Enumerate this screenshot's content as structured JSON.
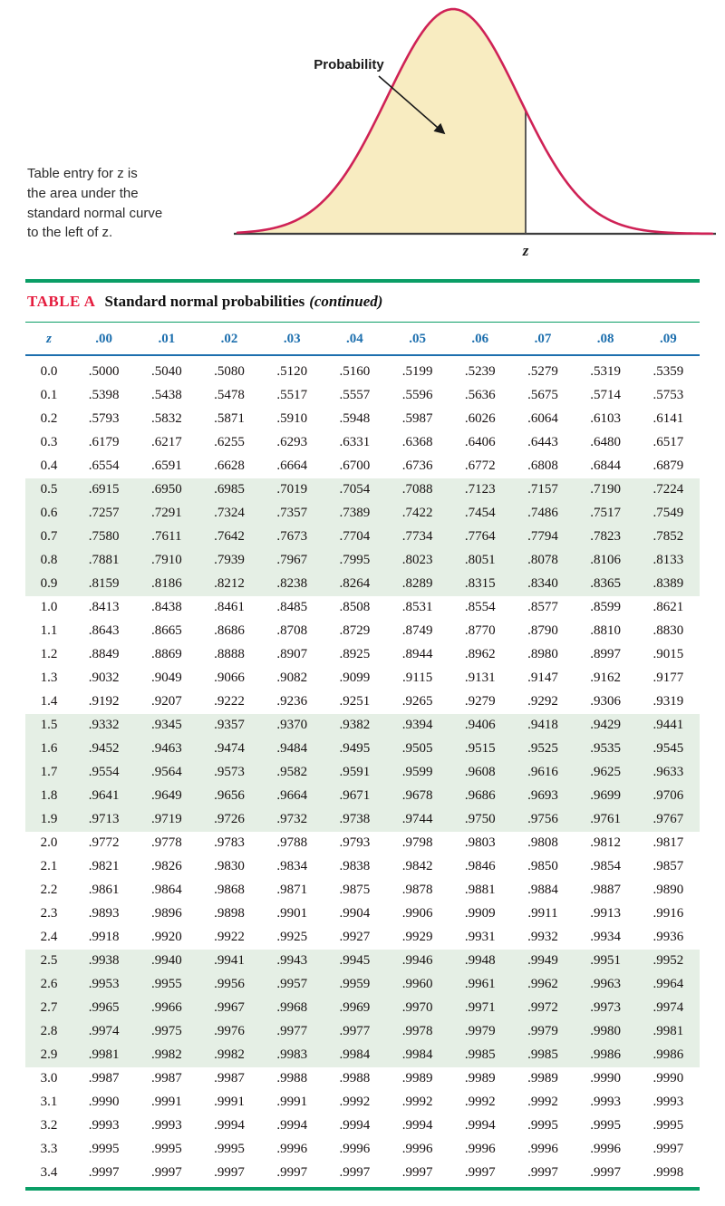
{
  "figure": {
    "probability_label": "Probability",
    "z_label": "z",
    "caption": "Table entry for z is\nthe area under the\nstandard normal curve\nto the left of z."
  },
  "table": {
    "title_prefix": "TABLE A",
    "title_main": "Standard normal probabilities",
    "title_continued": "(continued)",
    "columns": [
      "z",
      ".00",
      ".01",
      ".02",
      ".03",
      ".04",
      ".05",
      ".06",
      ".07",
      ".08",
      ".09"
    ],
    "rows": [
      [
        "0.0",
        ".5000",
        ".5040",
        ".5080",
        ".5120",
        ".5160",
        ".5199",
        ".5239",
        ".5279",
        ".5319",
        ".5359"
      ],
      [
        "0.1",
        ".5398",
        ".5438",
        ".5478",
        ".5517",
        ".5557",
        ".5596",
        ".5636",
        ".5675",
        ".5714",
        ".5753"
      ],
      [
        "0.2",
        ".5793",
        ".5832",
        ".5871",
        ".5910",
        ".5948",
        ".5987",
        ".6026",
        ".6064",
        ".6103",
        ".6141"
      ],
      [
        "0.3",
        ".6179",
        ".6217",
        ".6255",
        ".6293",
        ".6331",
        ".6368",
        ".6406",
        ".6443",
        ".6480",
        ".6517"
      ],
      [
        "0.4",
        ".6554",
        ".6591",
        ".6628",
        ".6664",
        ".6700",
        ".6736",
        ".6772",
        ".6808",
        ".6844",
        ".6879"
      ],
      [
        "0.5",
        ".6915",
        ".6950",
        ".6985",
        ".7019",
        ".7054",
        ".7088",
        ".7123",
        ".7157",
        ".7190",
        ".7224"
      ],
      [
        "0.6",
        ".7257",
        ".7291",
        ".7324",
        ".7357",
        ".7389",
        ".7422",
        ".7454",
        ".7486",
        ".7517",
        ".7549"
      ],
      [
        "0.7",
        ".7580",
        ".7611",
        ".7642",
        ".7673",
        ".7704",
        ".7734",
        ".7764",
        ".7794",
        ".7823",
        ".7852"
      ],
      [
        "0.8",
        ".7881",
        ".7910",
        ".7939",
        ".7967",
        ".7995",
        ".8023",
        ".8051",
        ".8078",
        ".8106",
        ".8133"
      ],
      [
        "0.9",
        ".8159",
        ".8186",
        ".8212",
        ".8238",
        ".8264",
        ".8289",
        ".8315",
        ".8340",
        ".8365",
        ".8389"
      ],
      [
        "1.0",
        ".8413",
        ".8438",
        ".8461",
        ".8485",
        ".8508",
        ".8531",
        ".8554",
        ".8577",
        ".8599",
        ".8621"
      ],
      [
        "1.1",
        ".8643",
        ".8665",
        ".8686",
        ".8708",
        ".8729",
        ".8749",
        ".8770",
        ".8790",
        ".8810",
        ".8830"
      ],
      [
        "1.2",
        ".8849",
        ".8869",
        ".8888",
        ".8907",
        ".8925",
        ".8944",
        ".8962",
        ".8980",
        ".8997",
        ".9015"
      ],
      [
        "1.3",
        ".9032",
        ".9049",
        ".9066",
        ".9082",
        ".9099",
        ".9115",
        ".9131",
        ".9147",
        ".9162",
        ".9177"
      ],
      [
        "1.4",
        ".9192",
        ".9207",
        ".9222",
        ".9236",
        ".9251",
        ".9265",
        ".9279",
        ".9292",
        ".9306",
        ".9319"
      ],
      [
        "1.5",
        ".9332",
        ".9345",
        ".9357",
        ".9370",
        ".9382",
        ".9394",
        ".9406",
        ".9418",
        ".9429",
        ".9441"
      ],
      [
        "1.6",
        ".9452",
        ".9463",
        ".9474",
        ".9484",
        ".9495",
        ".9505",
        ".9515",
        ".9525",
        ".9535",
        ".9545"
      ],
      [
        "1.7",
        ".9554",
        ".9564",
        ".9573",
        ".9582",
        ".9591",
        ".9599",
        ".9608",
        ".9616",
        ".9625",
        ".9633"
      ],
      [
        "1.8",
        ".9641",
        ".9649",
        ".9656",
        ".9664",
        ".9671",
        ".9678",
        ".9686",
        ".9693",
        ".9699",
        ".9706"
      ],
      [
        "1.9",
        ".9713",
        ".9719",
        ".9726",
        ".9732",
        ".9738",
        ".9744",
        ".9750",
        ".9756",
        ".9761",
        ".9767"
      ],
      [
        "2.0",
        ".9772",
        ".9778",
        ".9783",
        ".9788",
        ".9793",
        ".9798",
        ".9803",
        ".9808",
        ".9812",
        ".9817"
      ],
      [
        "2.1",
        ".9821",
        ".9826",
        ".9830",
        ".9834",
        ".9838",
        ".9842",
        ".9846",
        ".9850",
        ".9854",
        ".9857"
      ],
      [
        "2.2",
        ".9861",
        ".9864",
        ".9868",
        ".9871",
        ".9875",
        ".9878",
        ".9881",
        ".9884",
        ".9887",
        ".9890"
      ],
      [
        "2.3",
        ".9893",
        ".9896",
        ".9898",
        ".9901",
        ".9904",
        ".9906",
        ".9909",
        ".9911",
        ".9913",
        ".9916"
      ],
      [
        "2.4",
        ".9918",
        ".9920",
        ".9922",
        ".9925",
        ".9927",
        ".9929",
        ".9931",
        ".9932",
        ".9934",
        ".9936"
      ],
      [
        "2.5",
        ".9938",
        ".9940",
        ".9941",
        ".9943",
        ".9945",
        ".9946",
        ".9948",
        ".9949",
        ".9951",
        ".9952"
      ],
      [
        "2.6",
        ".9953",
        ".9955",
        ".9956",
        ".9957",
        ".9959",
        ".9960",
        ".9961",
        ".9962",
        ".9963",
        ".9964"
      ],
      [
        "2.7",
        ".9965",
        ".9966",
        ".9967",
        ".9968",
        ".9969",
        ".9970",
        ".9971",
        ".9972",
        ".9973",
        ".9974"
      ],
      [
        "2.8",
        ".9974",
        ".9975",
        ".9976",
        ".9977",
        ".9977",
        ".9978",
        ".9979",
        ".9979",
        ".9980",
        ".9981"
      ],
      [
        "2.9",
        ".9981",
        ".9982",
        ".9982",
        ".9983",
        ".9984",
        ".9984",
        ".9985",
        ".9985",
        ".9986",
        ".9986"
      ],
      [
        "3.0",
        ".9987",
        ".9987",
        ".9987",
        ".9988",
        ".9988",
        ".9989",
        ".9989",
        ".9989",
        ".9990",
        ".9990"
      ],
      [
        "3.1",
        ".9990",
        ".9991",
        ".9991",
        ".9991",
        ".9992",
        ".9992",
        ".9992",
        ".9992",
        ".9993",
        ".9993"
      ],
      [
        "3.2",
        ".9993",
        ".9993",
        ".9994",
        ".9994",
        ".9994",
        ".9994",
        ".9994",
        ".9995",
        ".9995",
        ".9995"
      ],
      [
        "3.3",
        ".9995",
        ".9995",
        ".9995",
        ".9996",
        ".9996",
        ".9996",
        ".9996",
        ".9996",
        ".9996",
        ".9997"
      ],
      [
        "3.4",
        ".9997",
        ".9997",
        ".9997",
        ".9997",
        ".9997",
        ".9997",
        ".9997",
        ".9997",
        ".9997",
        ".9998"
      ]
    ]
  },
  "colors": {
    "curve_red": "#cf2256",
    "curve_fill": "#f8ecc1",
    "accent_red": "#e51b3d",
    "rule_green": "#0a9e66",
    "header_blue": "#1d6fae",
    "band_green": "#e5efe5",
    "axis_dark": "#3d3d3d",
    "text_dark": "#171111"
  }
}
